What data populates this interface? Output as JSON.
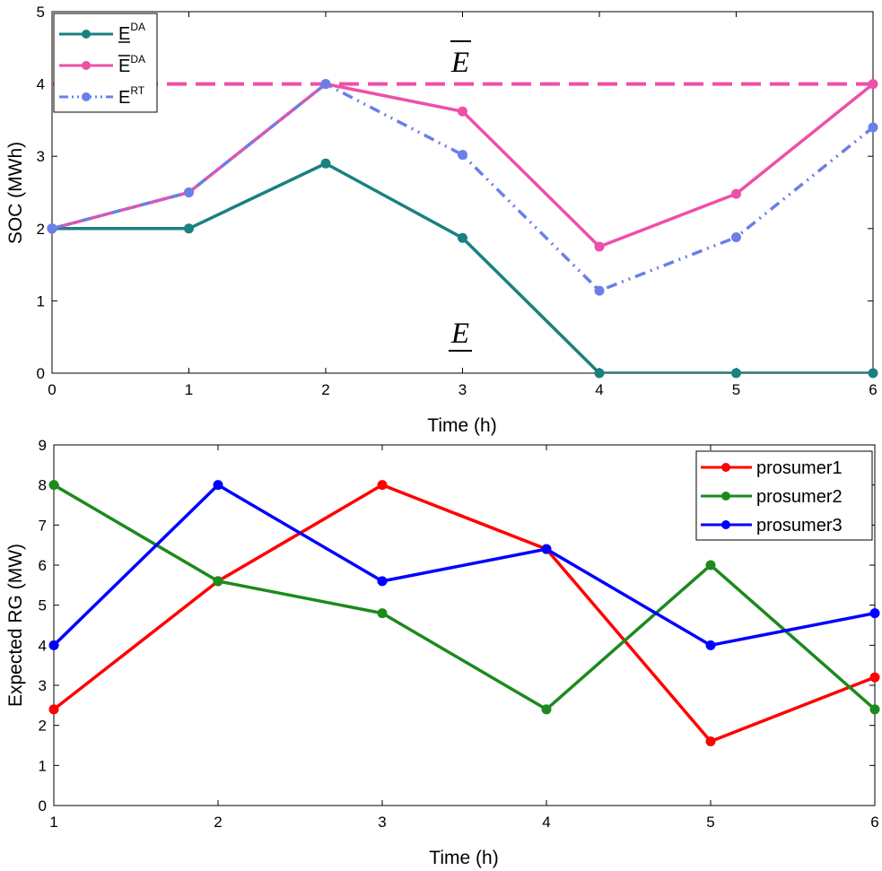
{
  "chart_data": [
    {
      "type": "line",
      "xlabel": "Time (h)",
      "ylabel": "SOC (MWh)",
      "xlim": [
        0,
        6
      ],
      "ylim": [
        0,
        5
      ],
      "xticks": [
        "0",
        "1",
        "2",
        "3",
        "4",
        "5",
        "6"
      ],
      "yticks": [
        "0",
        "1",
        "2",
        "3",
        "4",
        "5"
      ],
      "legend_position": "top-left",
      "legend": [
        {
          "main": "E",
          "sup": "DA",
          "bar": "under"
        },
        {
          "main": "E",
          "sup": "DA",
          "bar": "over"
        },
        {
          "main": "E",
          "sup": "RT",
          "bar": "none"
        }
      ],
      "x": [
        0,
        1,
        2,
        3,
        4,
        5,
        6
      ],
      "series": [
        {
          "name": "E_DA_lower",
          "color": "#1a8080",
          "style": "solid",
          "values": [
            2.0,
            2.0,
            2.9,
            1.87,
            0.0,
            0.0,
            0.0
          ]
        },
        {
          "name": "E_DA_upper",
          "color": "#ee4fa8",
          "style": "solid",
          "values": [
            2.0,
            2.5,
            4.0,
            3.62,
            1.75,
            2.48,
            4.0
          ]
        },
        {
          "name": "E_RT",
          "color": "#6a7fe8",
          "style": "dashdot",
          "values": [
            2.0,
            2.5,
            4.0,
            3.02,
            1.14,
            1.88,
            3.4
          ]
        }
      ],
      "reference_lines": [
        {
          "y": 4.0,
          "color": "#ee4fa8",
          "style": "dashed"
        }
      ],
      "annotations": [
        {
          "text": "E",
          "bar": "over",
          "near_y": 4.0
        },
        {
          "text": "E",
          "bar": "under",
          "near_y": 0.0
        }
      ]
    },
    {
      "type": "line",
      "xlabel": "Time (h)",
      "ylabel": "Expected RG (MW)",
      "xlim": [
        1,
        6
      ],
      "ylim": [
        0,
        9
      ],
      "xticks": [
        "1",
        "2",
        "3",
        "4",
        "5",
        "6"
      ],
      "yticks": [
        "0",
        "1",
        "2",
        "3",
        "4",
        "5",
        "6",
        "7",
        "8",
        "9"
      ],
      "legend_position": "top-right",
      "x": [
        1,
        2,
        3,
        4,
        5,
        6
      ],
      "series": [
        {
          "name": "prosumer1",
          "color": "#ff0000",
          "values": [
            2.4,
            5.6,
            8.0,
            6.4,
            1.6,
            3.2
          ]
        },
        {
          "name": "prosumer2",
          "color": "#1c8a1c",
          "values": [
            8.0,
            5.6,
            4.8,
            2.4,
            6.0,
            2.4
          ]
        },
        {
          "name": "prosumer3",
          "color": "#0000ff",
          "values": [
            4.0,
            8.0,
            5.6,
            6.4,
            4.0,
            4.8
          ]
        }
      ]
    }
  ]
}
